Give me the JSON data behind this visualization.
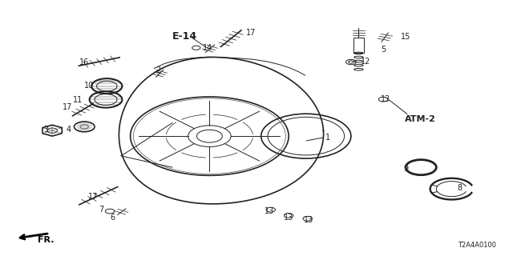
{
  "background_color": "#ffffff",
  "fig_width": 6.4,
  "fig_height": 3.2,
  "dpi": 100,
  "diagram_code": "T2A4A0100",
  "e14_label": "E-14",
  "atm2_label": "ATM-2",
  "fr_label": "FR.",
  "line_color": "#222222",
  "label_color": "#222222",
  "font_size": 7,
  "bold_font_size": 8
}
